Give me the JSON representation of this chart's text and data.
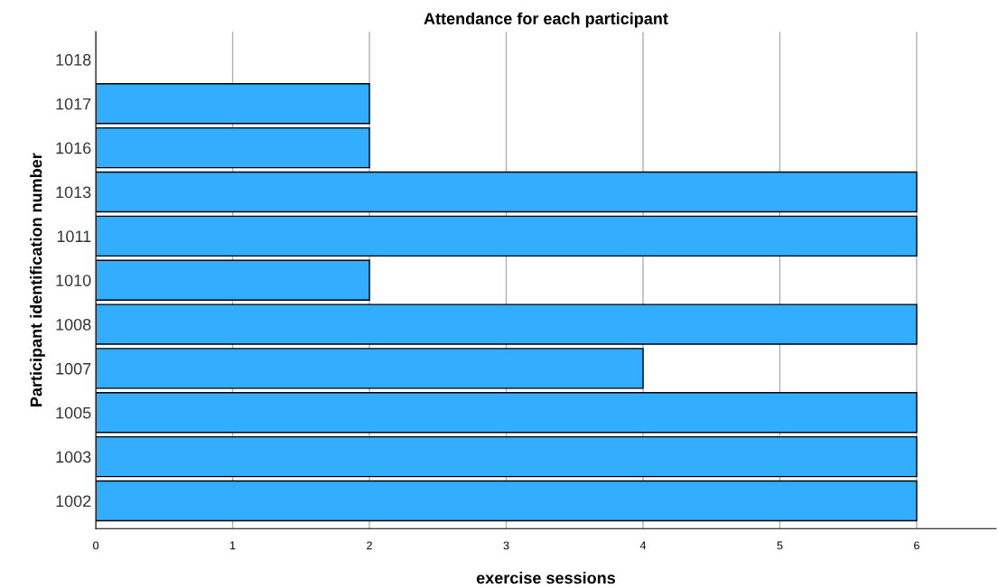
{
  "chart_data": {
    "type": "bar",
    "orientation": "horizontal",
    "title": "Attendance for each participant",
    "xlabel": "exercise sessions",
    "ylabel": "Participant identification number",
    "categories": [
      "1018",
      "1017",
      "1016",
      "1013",
      "1011",
      "1010",
      "1008",
      "1007",
      "1005",
      "1003",
      "1002"
    ],
    "values": [
      null,
      2,
      2,
      6,
      6,
      2,
      6,
      4,
      6,
      6,
      6
    ],
    "color": "#33adff",
    "xlim": [
      0,
      6.58
    ],
    "xticks": [
      0,
      1,
      2,
      3,
      4,
      5,
      6
    ],
    "grid": "x"
  }
}
